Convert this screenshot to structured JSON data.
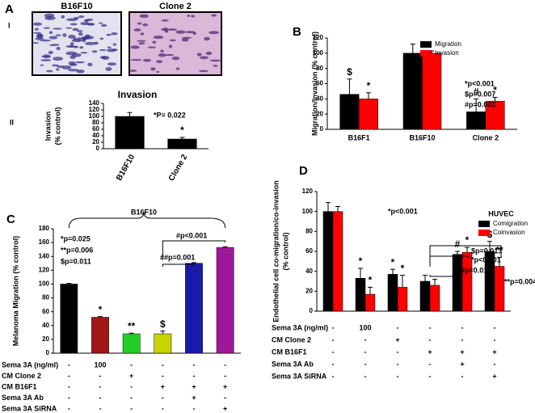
{
  "micrographs": {
    "panel": "A",
    "label": "I",
    "images": [
      "B16F10",
      "Clone 2"
    ]
  },
  "chart_data": [
    {
      "type": "bar",
      "panel": "II",
      "title": "Invasion",
      "ylabel": [
        "Invasion",
        "(% control)"
      ],
      "categories": [
        "B16F10",
        "Clone 2"
      ],
      "values": [
        100,
        30
      ],
      "errors": [
        12,
        5
      ],
      "color": "#000000",
      "markers": [
        null,
        "*"
      ],
      "ylim": [
        0,
        140
      ],
      "yticks": [
        0,
        20,
        40,
        60,
        80,
        100,
        120,
        140
      ],
      "annotations": [
        "*P= 0.022"
      ]
    },
    {
      "type": "bar",
      "panel": "B",
      "ylabel": [
        "Migration/Invasion (% control)"
      ],
      "categories": [
        "B16F1",
        "B16F10",
        "Clone 2"
      ],
      "series": [
        {
          "name": "Migration",
          "color": "#000000",
          "values": [
            46,
            100,
            23
          ],
          "errors": [
            20,
            12,
            17
          ],
          "markers": [
            "$",
            null,
            "#"
          ]
        },
        {
          "name": "Invasion",
          "color": "#ff0000",
          "values": [
            40,
            100,
            37
          ],
          "errors": [
            8,
            3,
            5
          ],
          "markers": [
            "*",
            null,
            "*"
          ]
        }
      ],
      "legend": "upper right",
      "ylim": [
        0,
        120
      ],
      "yticks": [
        0,
        20,
        40,
        60,
        80,
        100,
        120
      ],
      "annotations": [
        "*p<0.001",
        "$p=0.007",
        "#p=0.003"
      ]
    },
    {
      "type": "bar",
      "panel": "C",
      "ylabel": [
        "Melanoma Migration (% control)"
      ],
      "values": [
        100,
        52,
        28,
        28,
        130,
        153
      ],
      "errors": [
        1,
        1,
        1,
        4,
        1,
        1
      ],
      "colors": [
        "#000000",
        "#a01818",
        "#22d022",
        "#c8d400",
        "#1a1aa8",
        "#a0189a"
      ],
      "markers": [
        null,
        "*",
        "**",
        "$",
        null,
        null
      ],
      "ylim": [
        0,
        180
      ],
      "yticks": [
        0,
        20,
        40,
        60,
        80,
        100,
        120,
        140,
        160,
        180
      ],
      "annotations": [
        "B16F10",
        "*p=0.025",
        "**p=0.006",
        "$p=0.011",
        "#p<0.001",
        "##p=0.001"
      ],
      "treatments": [
        {
          "label": "Sema 3A (ng/ml)",
          "values": [
            "-",
            "100",
            "-",
            "-",
            "-",
            "-"
          ]
        },
        {
          "label": "CM Clone 2",
          "values": [
            "-",
            "-",
            "+",
            "-",
            "-",
            "-"
          ]
        },
        {
          "label": "CM B16F1",
          "values": [
            "-",
            "-",
            "-",
            "+",
            "+",
            "+"
          ]
        },
        {
          "label": "Sema 3A Ab",
          "values": [
            "-",
            "-",
            "-",
            "-",
            "+",
            "-"
          ]
        },
        {
          "label": "Sema 3A SiRNA",
          "values": [
            "-",
            "-",
            "-",
            "-",
            "-",
            "+"
          ]
        }
      ]
    },
    {
      "type": "bar",
      "panel": "D",
      "ylabel": [
        "Endothelial cell co-migration/co-invasion",
        "(% control)"
      ],
      "legend_title": "HUVEC",
      "series": [
        {
          "name": "Comigration",
          "color": "#000000",
          "values": [
            100,
            33,
            37,
            30,
            57,
            60
          ],
          "errors": [
            9,
            10,
            5,
            6,
            3,
            10
          ],
          "markers": [
            null,
            "*",
            "*",
            null,
            "#",
            "$"
          ]
        },
        {
          "name": "Coinvasion",
          "color": "#ff0000",
          "values": [
            100,
            17,
            24,
            26,
            59,
            45
          ],
          "errors": [
            5,
            7,
            12,
            6,
            5,
            9
          ],
          "markers": [
            null,
            "*",
            "*",
            null,
            "*",
            "**"
          ]
        }
      ],
      "legend": "upper right",
      "ylim": [
        0,
        120
      ],
      "yticks": [
        0,
        20,
        40,
        60,
        80,
        100,
        120
      ],
      "annotations": [
        "*p<0.001",
        "$p=0.013",
        "*p<0.001",
        "#p=0.01",
        "**p=0.004"
      ],
      "treatments": [
        {
          "label": "Sema 3A (ng/ml)",
          "values": [
            "-",
            "100",
            "-",
            "-",
            "-",
            "-"
          ]
        },
        {
          "label": "CM Clone 2",
          "values": [
            "-",
            "-",
            "+",
            "-",
            "-",
            "-"
          ]
        },
        {
          "label": "CM B16F1",
          "values": [
            "-",
            "-",
            "-",
            "+",
            "+",
            "+"
          ]
        },
        {
          "label": "Sema 3A Ab",
          "values": [
            "-",
            "-",
            "-",
            "-",
            "+",
            "-"
          ]
        },
        {
          "label": "Sema 3A SiRNA",
          "values": [
            "-",
            "-",
            "-",
            "-",
            "-",
            "+"
          ]
        }
      ]
    }
  ]
}
